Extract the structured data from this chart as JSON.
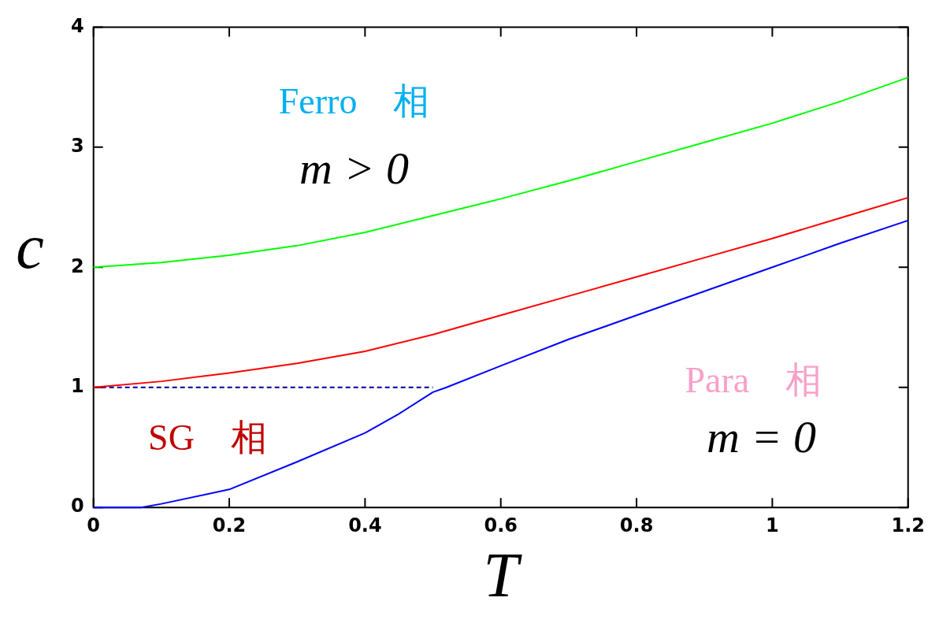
{
  "chart_data": {
    "type": "line",
    "xlabel": "T",
    "ylabel": "c",
    "xlim": [
      0,
      1.2
    ],
    "ylim": [
      0,
      4
    ],
    "xticks": [
      0,
      0.2,
      0.4,
      0.6,
      0.8,
      1,
      1.2
    ],
    "yticks": [
      0,
      1,
      2,
      3,
      4
    ],
    "grid": false,
    "legend": false,
    "marker": "none",
    "series": [
      {
        "color": "#00ff00",
        "x": [
          0,
          0.1,
          0.2,
          0.3,
          0.4,
          0.5,
          0.6,
          0.7,
          0.8,
          0.9,
          1.0,
          1.1,
          1.2
        ],
        "values": [
          2.0,
          2.04,
          2.1,
          2.18,
          2.29,
          2.43,
          2.57,
          2.72,
          2.88,
          3.04,
          3.2,
          3.38,
          3.58
        ]
      },
      {
        "color": "#ff0000",
        "x": [
          0,
          0.1,
          0.2,
          0.3,
          0.4,
          0.5,
          0.6,
          0.7,
          0.8,
          0.9,
          1.0,
          1.1,
          1.2
        ],
        "values": [
          1.0,
          1.05,
          1.12,
          1.2,
          1.3,
          1.44,
          1.6,
          1.76,
          1.92,
          2.08,
          2.24,
          2.41,
          2.58
        ]
      },
      {
        "color": "#0000ff",
        "x": [
          0,
          0.07,
          0.1,
          0.2,
          0.3,
          0.4,
          0.45,
          0.5,
          0.52,
          0.6,
          0.7,
          0.8,
          0.9,
          1.0,
          1.1,
          1.2
        ],
        "values": [
          0,
          0,
          0.03,
          0.15,
          0.38,
          0.62,
          0.78,
          0.96,
          1.0,
          1.18,
          1.4,
          1.6,
          1.8,
          2.0,
          2.2,
          2.39
        ]
      },
      {
        "color": "#000099",
        "line_style": "dashed",
        "x": [
          0,
          0.5
        ],
        "values": [
          1,
          1
        ]
      }
    ],
    "annotations": [
      "Ferro　相",
      "m > 0",
      "SG　相",
      "Para　相",
      "m = 0"
    ]
  }
}
